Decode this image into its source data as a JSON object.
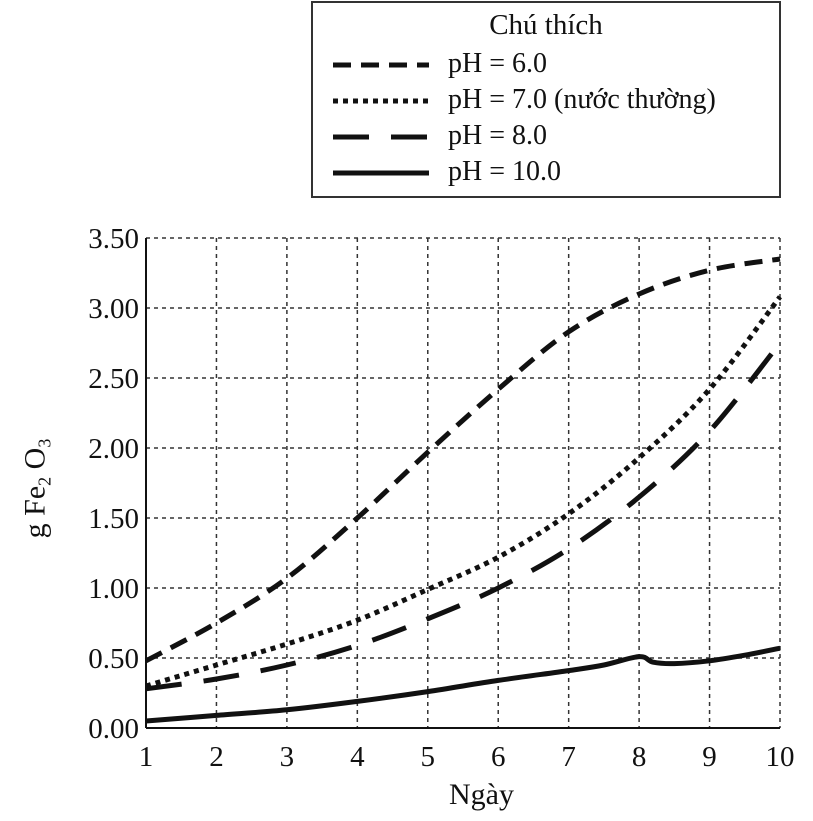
{
  "legend": {
    "title": "Chú thích",
    "entries": [
      {
        "label": "pH = 6.0",
        "style": "dash"
      },
      {
        "label": "pH = 7.0  (nước thường)",
        "style": "dot"
      },
      {
        "label": "pH = 8.0",
        "style": "longdash"
      },
      {
        "label": "pH = 10.0",
        "style": "solid"
      }
    ]
  },
  "chart_data": {
    "type": "line",
    "xlabel": "Ngày",
    "ylabel_main": "g Fe",
    "ylabel_sub1": "2",
    "ylabel_mid": " O",
    "ylabel_sub2": "3",
    "xlim": [
      1,
      10
    ],
    "ylim": [
      0,
      3.5
    ],
    "x_ticks": [
      "1",
      "2",
      "3",
      "4",
      "5",
      "6",
      "7",
      "8",
      "9",
      "10"
    ],
    "y_ticks": [
      "0.00",
      "0.50",
      "1.00",
      "1.50",
      "2.00",
      "2.50",
      "3.00",
      "3.50"
    ],
    "grid": true,
    "line_color": "#111111",
    "series": [
      {
        "name": "pH = 6.0",
        "style": "dash",
        "x": [
          1,
          2,
          3,
          4,
          5,
          6,
          7,
          8,
          9,
          10
        ],
        "y": [
          0.48,
          0.75,
          1.07,
          1.5,
          1.97,
          2.42,
          2.83,
          3.1,
          3.27,
          3.35
        ]
      },
      {
        "name": "pH = 7.0  (nước thường)",
        "style": "dot",
        "x": [
          1,
          2,
          3,
          4,
          5,
          6,
          7,
          8,
          9,
          10
        ],
        "y": [
          0.3,
          0.45,
          0.6,
          0.77,
          0.99,
          1.22,
          1.53,
          1.93,
          2.42,
          3.08
        ]
      },
      {
        "name": "pH = 8.0",
        "style": "longdash",
        "x": [
          1,
          2,
          3,
          4,
          5,
          6,
          7,
          8,
          9,
          10
        ],
        "y": [
          0.28,
          0.35,
          0.45,
          0.59,
          0.78,
          1.0,
          1.28,
          1.65,
          2.12,
          2.75
        ]
      },
      {
        "name": "pH = 10.0",
        "style": "solid",
        "x": [
          1,
          2,
          3,
          4,
          5,
          6,
          7,
          7.5,
          8,
          8.2,
          8.5,
          9,
          9.5,
          10
        ],
        "y": [
          0.05,
          0.09,
          0.13,
          0.19,
          0.26,
          0.34,
          0.41,
          0.45,
          0.51,
          0.47,
          0.46,
          0.48,
          0.52,
          0.57
        ]
      }
    ]
  }
}
